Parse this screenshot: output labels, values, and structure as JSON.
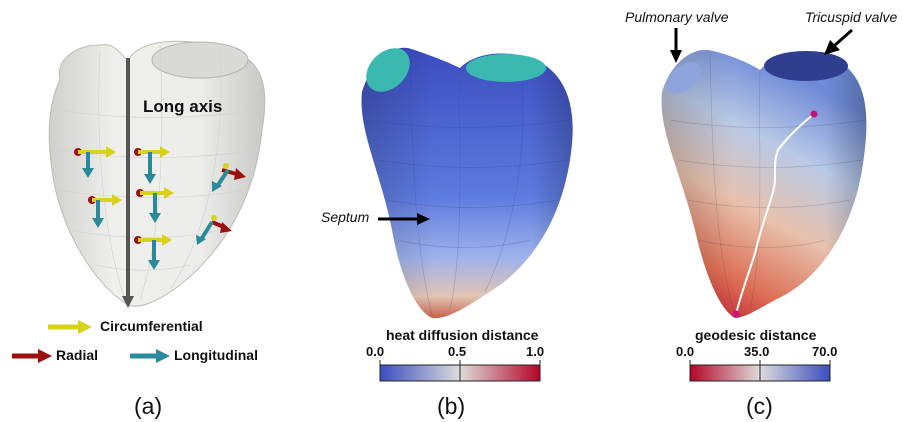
{
  "panel_a": {
    "long_axis_label": "Long axis",
    "legend": {
      "circumferential": "Circumferential",
      "radial": "Radial",
      "longitudinal": "Longitudinal"
    },
    "caption": "(a)",
    "colors": {
      "circumferential": "#d8d21a",
      "radial": "#9b0f0f",
      "longitudinal": "#2a8a9a",
      "axis": "#555555",
      "mesh": "#ececea"
    }
  },
  "panel_b": {
    "septum_label": "Septum",
    "colorbar_title": "heat diffusion distance",
    "ticks": [
      "0.0",
      "0.5",
      "1.0"
    ],
    "caption": "(b)",
    "colors": {
      "low": "#3b4cc0",
      "mid": "#dddcdc",
      "high": "#b40426",
      "valve": "#3bb8b0"
    }
  },
  "panel_c": {
    "pulmonary_label": "Pulmonary valve",
    "tricuspid_label": "Tricuspid valve",
    "colorbar_title": "geodesic distance",
    "ticks": [
      "0.0",
      "35.0",
      "70.0"
    ],
    "caption": "(c)",
    "colors": {
      "low": "#b40426",
      "mid": "#dddcdc",
      "high": "#3b4cc0",
      "path": "#ffffff",
      "marker": "#c8147c"
    }
  }
}
